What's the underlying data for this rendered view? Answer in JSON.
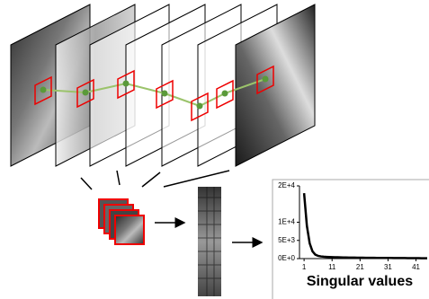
{
  "chart_data": {
    "type": "line",
    "xlabel": "Singular values",
    "x": [
      1,
      2,
      3,
      4,
      5,
      6,
      7,
      8,
      9,
      10,
      11,
      12,
      13,
      14,
      15,
      16,
      17,
      18,
      19,
      20,
      21,
      22,
      23,
      24,
      25,
      26,
      27,
      28,
      29,
      30,
      31,
      32,
      33,
      34,
      35,
      36,
      37,
      38,
      39,
      40,
      41,
      42,
      43,
      44,
      45
    ],
    "values": [
      18000,
      9000,
      4200,
      2000,
      1100,
      750,
      600,
      520,
      470,
      430,
      400,
      380,
      360,
      340,
      320,
      305,
      290,
      280,
      270,
      260,
      250,
      240,
      230,
      222,
      215,
      208,
      200,
      194,
      188,
      182,
      176,
      170,
      164,
      158,
      152,
      146,
      140,
      134,
      128,
      122,
      116,
      110,
      104,
      98,
      92
    ],
    "color": "#000000",
    "xlim": [
      0,
      45
    ],
    "xticks": [
      1,
      11,
      21,
      31,
      41
    ],
    "ylim": [
      0,
      20000
    ],
    "yticks": [
      {
        "value": 20000,
        "label": "2E+4"
      },
      {
        "value": 10000,
        "label": "1E+4"
      },
      {
        "value": 5000,
        "label": "5E+3"
      },
      {
        "value": 0,
        "label": "0E+0"
      }
    ]
  }
}
